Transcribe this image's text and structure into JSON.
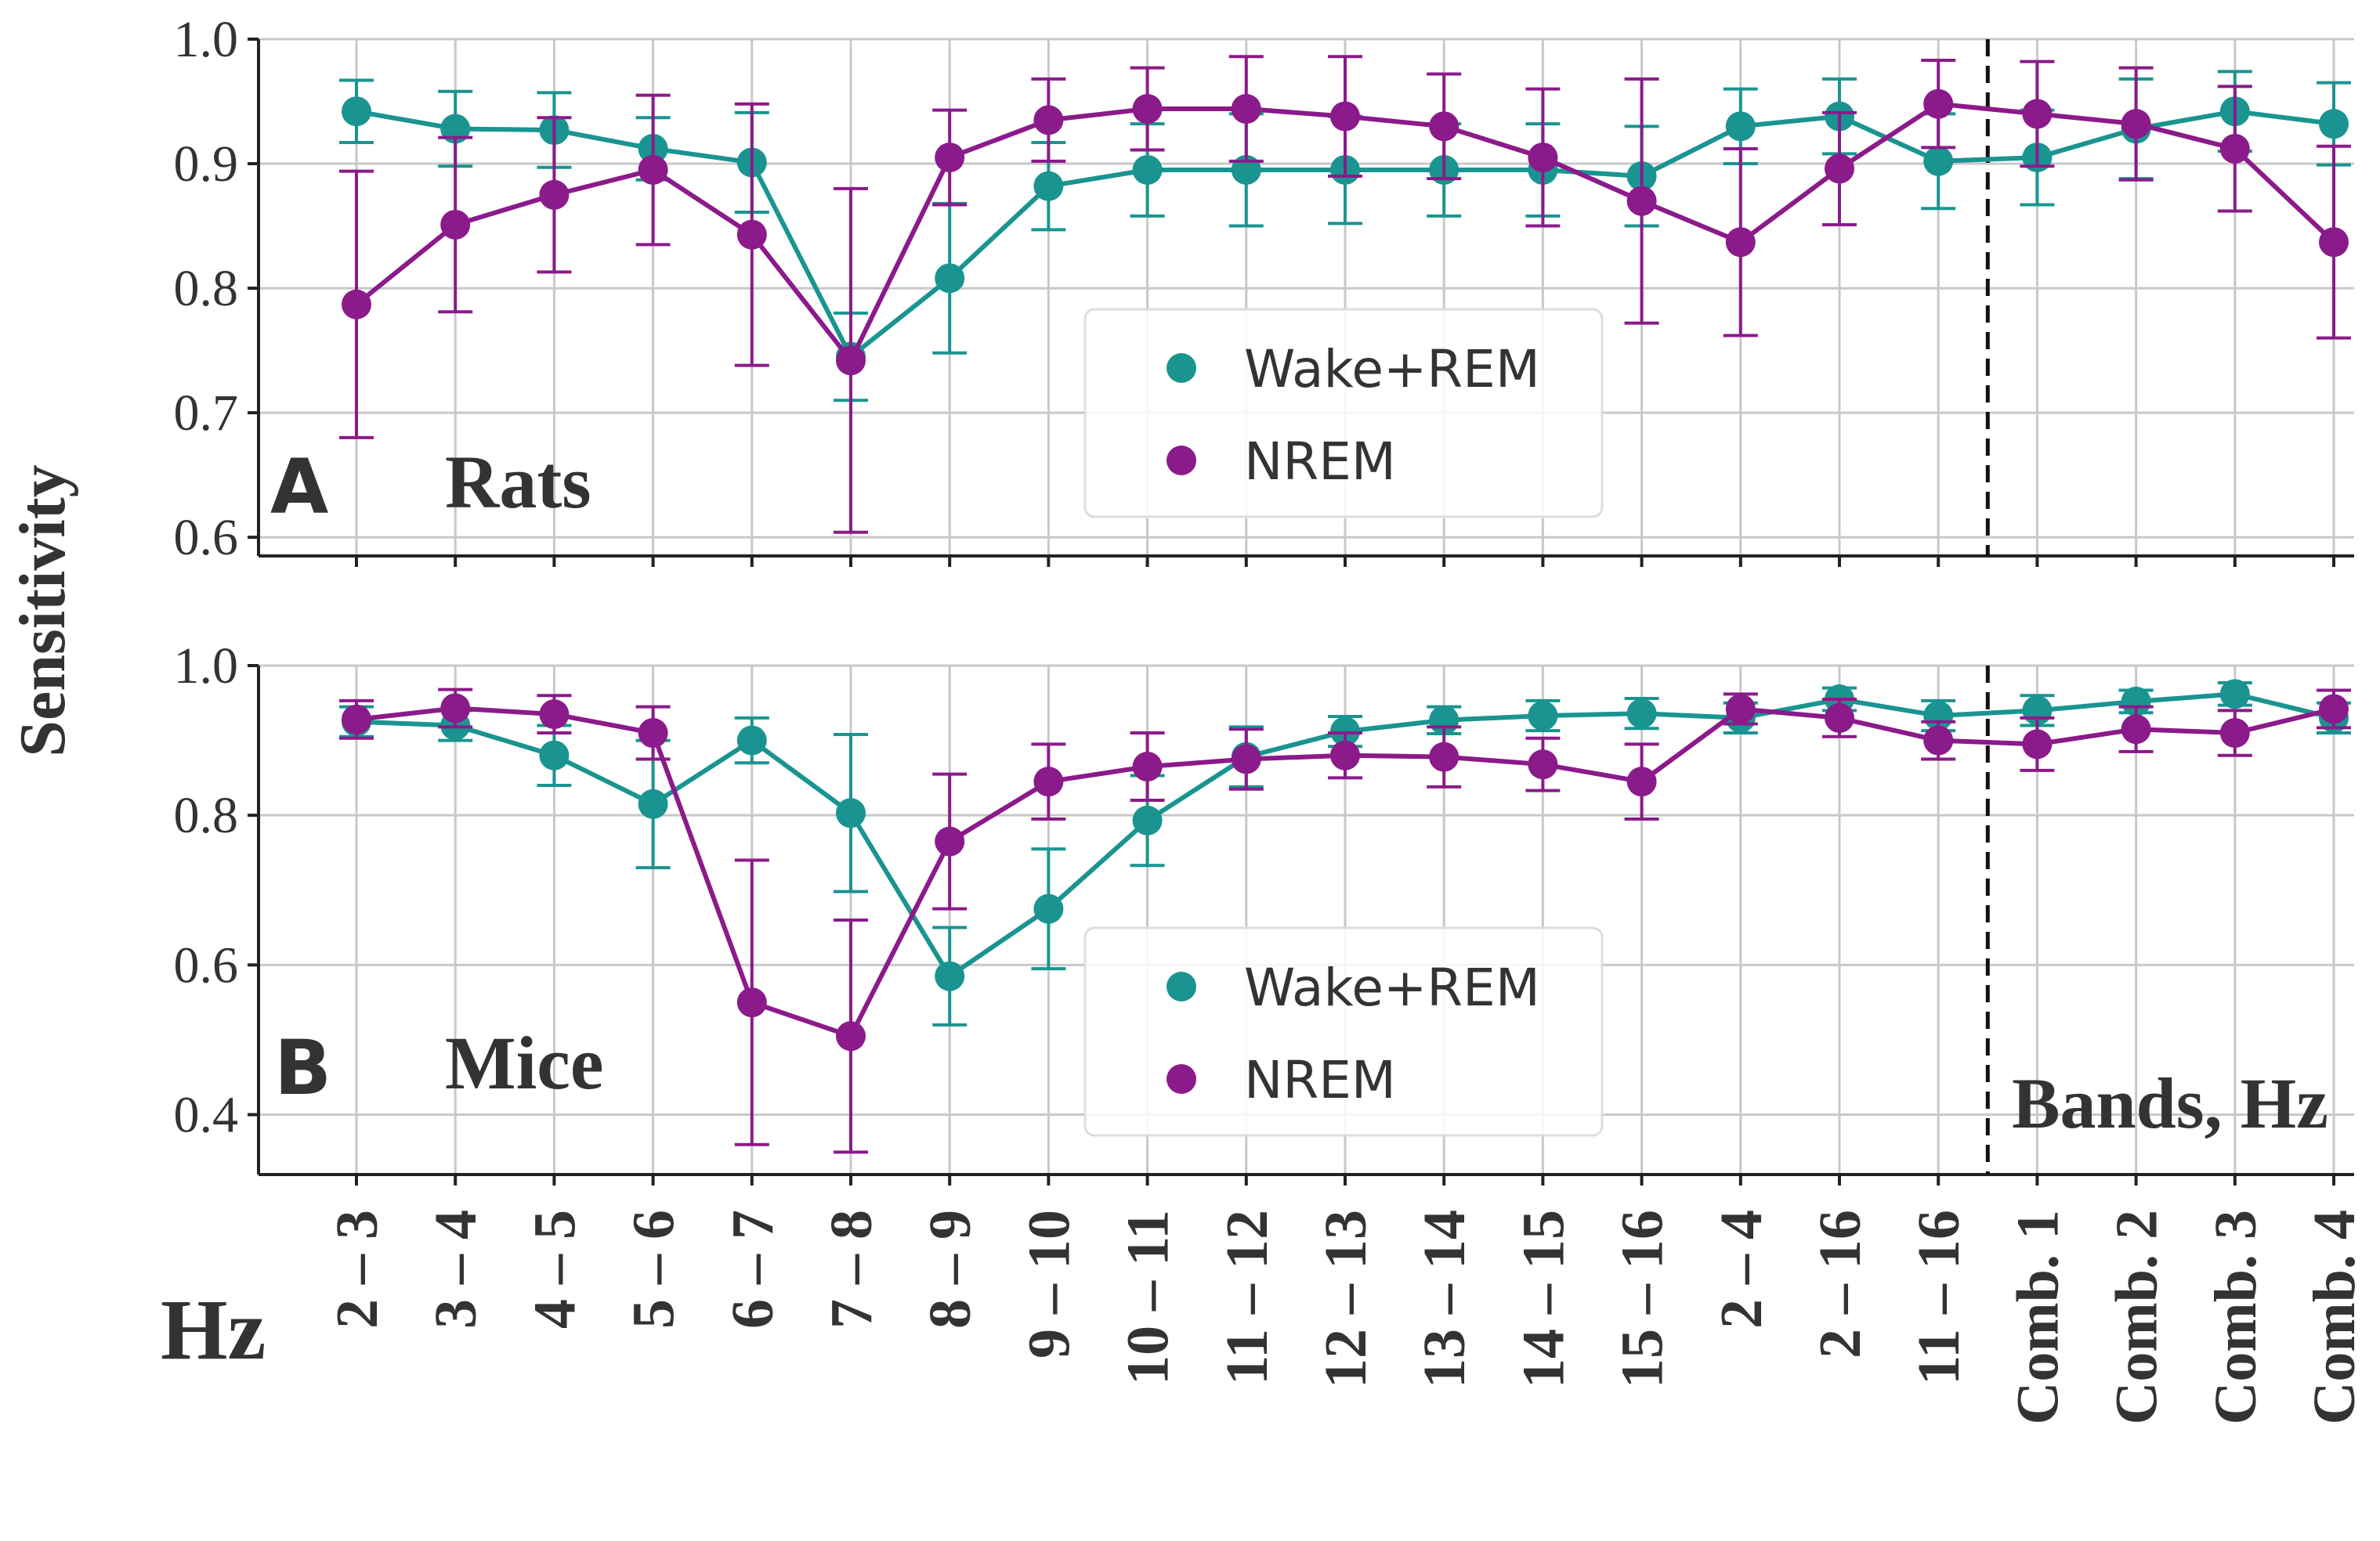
{
  "chart_data": [
    {
      "panel": "A",
      "type": "line",
      "title": "Rats",
      "ylabel": "Sensitivity",
      "ylim": [
        0.585,
        1.0
      ],
      "yticks": [
        "0.6",
        "0.7",
        "0.8",
        "0.9",
        "1.0"
      ],
      "categories": [
        "2 – 3",
        "3 – 4",
        "4 – 5",
        "5 – 6",
        "6 – 7",
        "7 – 8",
        "8 – 9",
        "9 – 10",
        "10 – 11",
        "11 – 12",
        "12 – 13",
        "13 – 14",
        "14 – 15",
        "15 – 16",
        "2 – 4",
        "2 – 16",
        "11 – 16",
        "Comb. 1",
        "Comb. 2",
        "Comb. 3",
        "Comb. 4"
      ],
      "series": [
        {
          "name": "Wake+REM",
          "color": "#1a9490",
          "values": [
            0.942,
            0.928,
            0.927,
            0.912,
            0.901,
            0.745,
            0.808,
            0.882,
            0.895,
            0.895,
            0.895,
            0.895,
            0.895,
            0.89,
            0.93,
            0.938,
            0.902,
            0.905,
            0.928,
            0.942,
            0.932
          ],
          "errors": [
            0.025,
            0.03,
            0.03,
            0.025,
            0.04,
            0.035,
            0.06,
            0.035,
            0.037,
            0.045,
            0.043,
            0.037,
            0.037,
            0.04,
            0.03,
            0.03,
            0.038,
            0.038,
            0.04,
            0.032,
            0.033
          ]
        },
        {
          "name": "NREM",
          "color": "#8b1a8a",
          "values": [
            0.787,
            0.851,
            0.875,
            0.895,
            0.843,
            0.742,
            0.905,
            0.935,
            0.944,
            0.944,
            0.938,
            0.93,
            0.905,
            0.87,
            0.837,
            0.896,
            0.948,
            0.94,
            0.932,
            0.912,
            0.837
          ],
          "errors": [
            0.107,
            0.07,
            0.062,
            0.06,
            0.105,
            0.138,
            0.038,
            0.033,
            0.033,
            0.042,
            0.048,
            0.042,
            0.055,
            0.098,
            0.075,
            0.045,
            0.035,
            0.042,
            0.045,
            0.05,
            0.077
          ]
        }
      ],
      "legend": [
        "Wake+REM",
        "NREM"
      ],
      "legend_placement": "center-right",
      "divider_after": "11 – 16"
    },
    {
      "panel": "B",
      "type": "line",
      "title": "Mice",
      "ylabel": "Sensitivity",
      "ylim": [
        0.32,
        1.0
      ],
      "yticks": [
        "0.4",
        "0.6",
        "0.8",
        "1.0"
      ],
      "categories": [
        "2 – 3",
        "3 – 4",
        "4 – 5",
        "5 – 6",
        "6 – 7",
        "7 – 8",
        "8 – 9",
        "9 – 10",
        "10 – 11",
        "11 – 12",
        "12 – 13",
        "13 – 14",
        "14 – 15",
        "15 – 16",
        "2 – 4",
        "2 – 16",
        "11 – 16",
        "Comb. 1",
        "Comb. 2",
        "Comb. 3",
        "Comb. 4"
      ],
      "series": [
        {
          "name": "Wake+REM",
          "color": "#1a9490",
          "values": [
            0.925,
            0.92,
            0.88,
            0.815,
            0.9,
            0.803,
            0.585,
            0.675,
            0.793,
            0.878,
            0.912,
            0.927,
            0.933,
            0.936,
            0.93,
            0.955,
            0.933,
            0.94,
            0.952,
            0.962,
            0.93
          ],
          "errors": [
            0.02,
            0.02,
            0.04,
            0.085,
            0.03,
            0.105,
            0.065,
            0.08,
            0.06,
            0.04,
            0.02,
            0.018,
            0.02,
            0.02,
            0.02,
            0.015,
            0.02,
            0.02,
            0.015,
            0.015,
            0.02
          ]
        },
        {
          "name": "NREM",
          "color": "#8b1a8a",
          "values": [
            0.928,
            0.943,
            0.935,
            0.91,
            0.55,
            0.505,
            0.765,
            0.845,
            0.865,
            0.875,
            0.88,
            0.878,
            0.868,
            0.845,
            0.942,
            0.93,
            0.9,
            0.895,
            0.915,
            0.91,
            0.942
          ],
          "errors": [
            0.025,
            0.025,
            0.025,
            0.035,
            0.19,
            0.155,
            0.09,
            0.05,
            0.045,
            0.04,
            0.03,
            0.04,
            0.035,
            0.05,
            0.02,
            0.025,
            0.025,
            0.035,
            0.03,
            0.03,
            0.025
          ]
        }
      ],
      "legend": [
        "Wake+REM",
        "NREM"
      ],
      "legend_placement": "center-right",
      "divider_after": "11 – 16"
    }
  ],
  "labels": {
    "ylabel": "Sensitivity",
    "panelA_letter": "A",
    "panelA_title": "Rats",
    "panelB_letter": "B",
    "panelB_title": "Mice",
    "hz": "Hz",
    "bands": "Bands, Hz"
  }
}
